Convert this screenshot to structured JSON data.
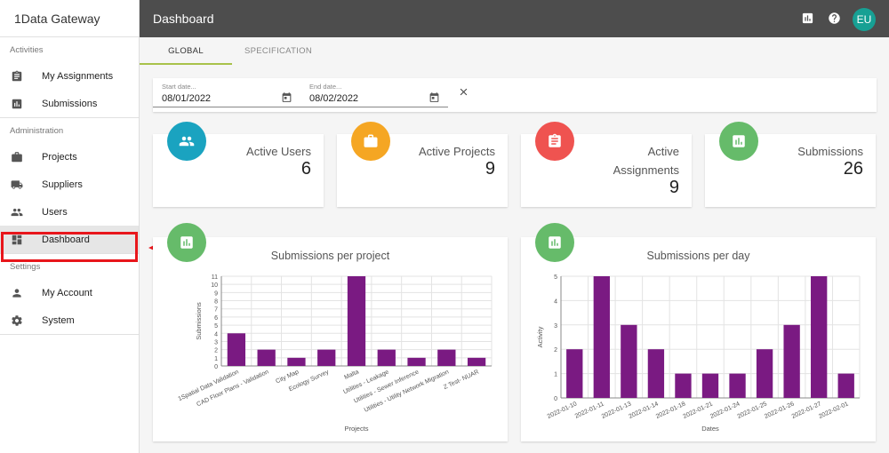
{
  "app": {
    "brand": "1Data Gateway"
  },
  "header": {
    "title": "Dashboard",
    "avatar": "EU"
  },
  "sidebar": {
    "sections": [
      {
        "label": "Activities",
        "items": [
          {
            "label": "My Assignments",
            "icon": "assignment-icon"
          },
          {
            "label": "Submissions",
            "icon": "bar-chart-icon"
          }
        ]
      },
      {
        "label": "Administration",
        "items": [
          {
            "label": "Projects",
            "icon": "briefcase-icon"
          },
          {
            "label": "Suppliers",
            "icon": "truck-icon"
          },
          {
            "label": "Users",
            "icon": "people-icon"
          },
          {
            "label": "Dashboard",
            "icon": "dashboard-icon",
            "active": true
          }
        ]
      },
      {
        "label": "Settings",
        "items": [
          {
            "label": "My Account",
            "icon": "person-icon"
          },
          {
            "label": "System",
            "icon": "gear-icon"
          }
        ]
      }
    ]
  },
  "tabs": [
    {
      "label": "GLOBAL",
      "active": true
    },
    {
      "label": "SPECIFICATION",
      "active": false
    }
  ],
  "filters": {
    "start": {
      "label": "Start date...",
      "value": "08/01/2022"
    },
    "end": {
      "label": "End date...",
      "value": "08/02/2022"
    }
  },
  "stats": [
    {
      "label": "Active Users",
      "value": "6",
      "color": "#1aa3c0",
      "icon": "people-icon"
    },
    {
      "label": "Active Projects",
      "value": "9",
      "color": "#f5a623",
      "icon": "briefcase-icon"
    },
    {
      "label": "Active Assignments",
      "label_lines": [
        "Active",
        "Assignments"
      ],
      "value": "9",
      "color": "#ef5350",
      "icon": "assignment-icon"
    },
    {
      "label": "Submissions",
      "value": "26",
      "color": "#66bb6a",
      "icon": "bar-chart-icon"
    }
  ],
  "colors": {
    "bar": "#7a1a82",
    "accent_tab": "#a8c24a",
    "highlight": "#e8161b"
  },
  "chart_data": [
    {
      "type": "bar",
      "title": "Submissions per project",
      "xlabel": "Projects",
      "ylabel": "Submissions",
      "categories": [
        "1Spatial Data Validation",
        "CAD Floor Plans - Validation",
        "City Map",
        "Ecology Survey",
        "Malta",
        "Utilities - Leakage",
        "Utilities - Sewer Inference",
        "Utilities - Utility Network Migration",
        "Z Test- NUAR"
      ],
      "values": [
        4,
        2,
        1,
        2,
        11,
        2,
        1,
        2,
        1
      ],
      "ylim": [
        0,
        11
      ],
      "yticks": [
        0,
        1,
        2,
        3,
        4,
        5,
        6,
        7,
        8,
        9,
        10,
        11
      ],
      "grid": true
    },
    {
      "type": "bar",
      "title": "Submissions per day",
      "xlabel": "Dates",
      "ylabel": "Activity",
      "categories": [
        "2022-01-10",
        "2022-01-11",
        "2022-01-13",
        "2022-01-14",
        "2022-01-18",
        "2022-01-21",
        "2022-01-24",
        "2022-01-25",
        "2022-01-26",
        "2022-01-27",
        "2022-02-01"
      ],
      "values": [
        2,
        5,
        3,
        2,
        1,
        1,
        1,
        2,
        3,
        5,
        1
      ],
      "ylim": [
        0,
        5
      ],
      "yticks": [
        0,
        1,
        2,
        3,
        4,
        5
      ],
      "grid": true
    }
  ]
}
